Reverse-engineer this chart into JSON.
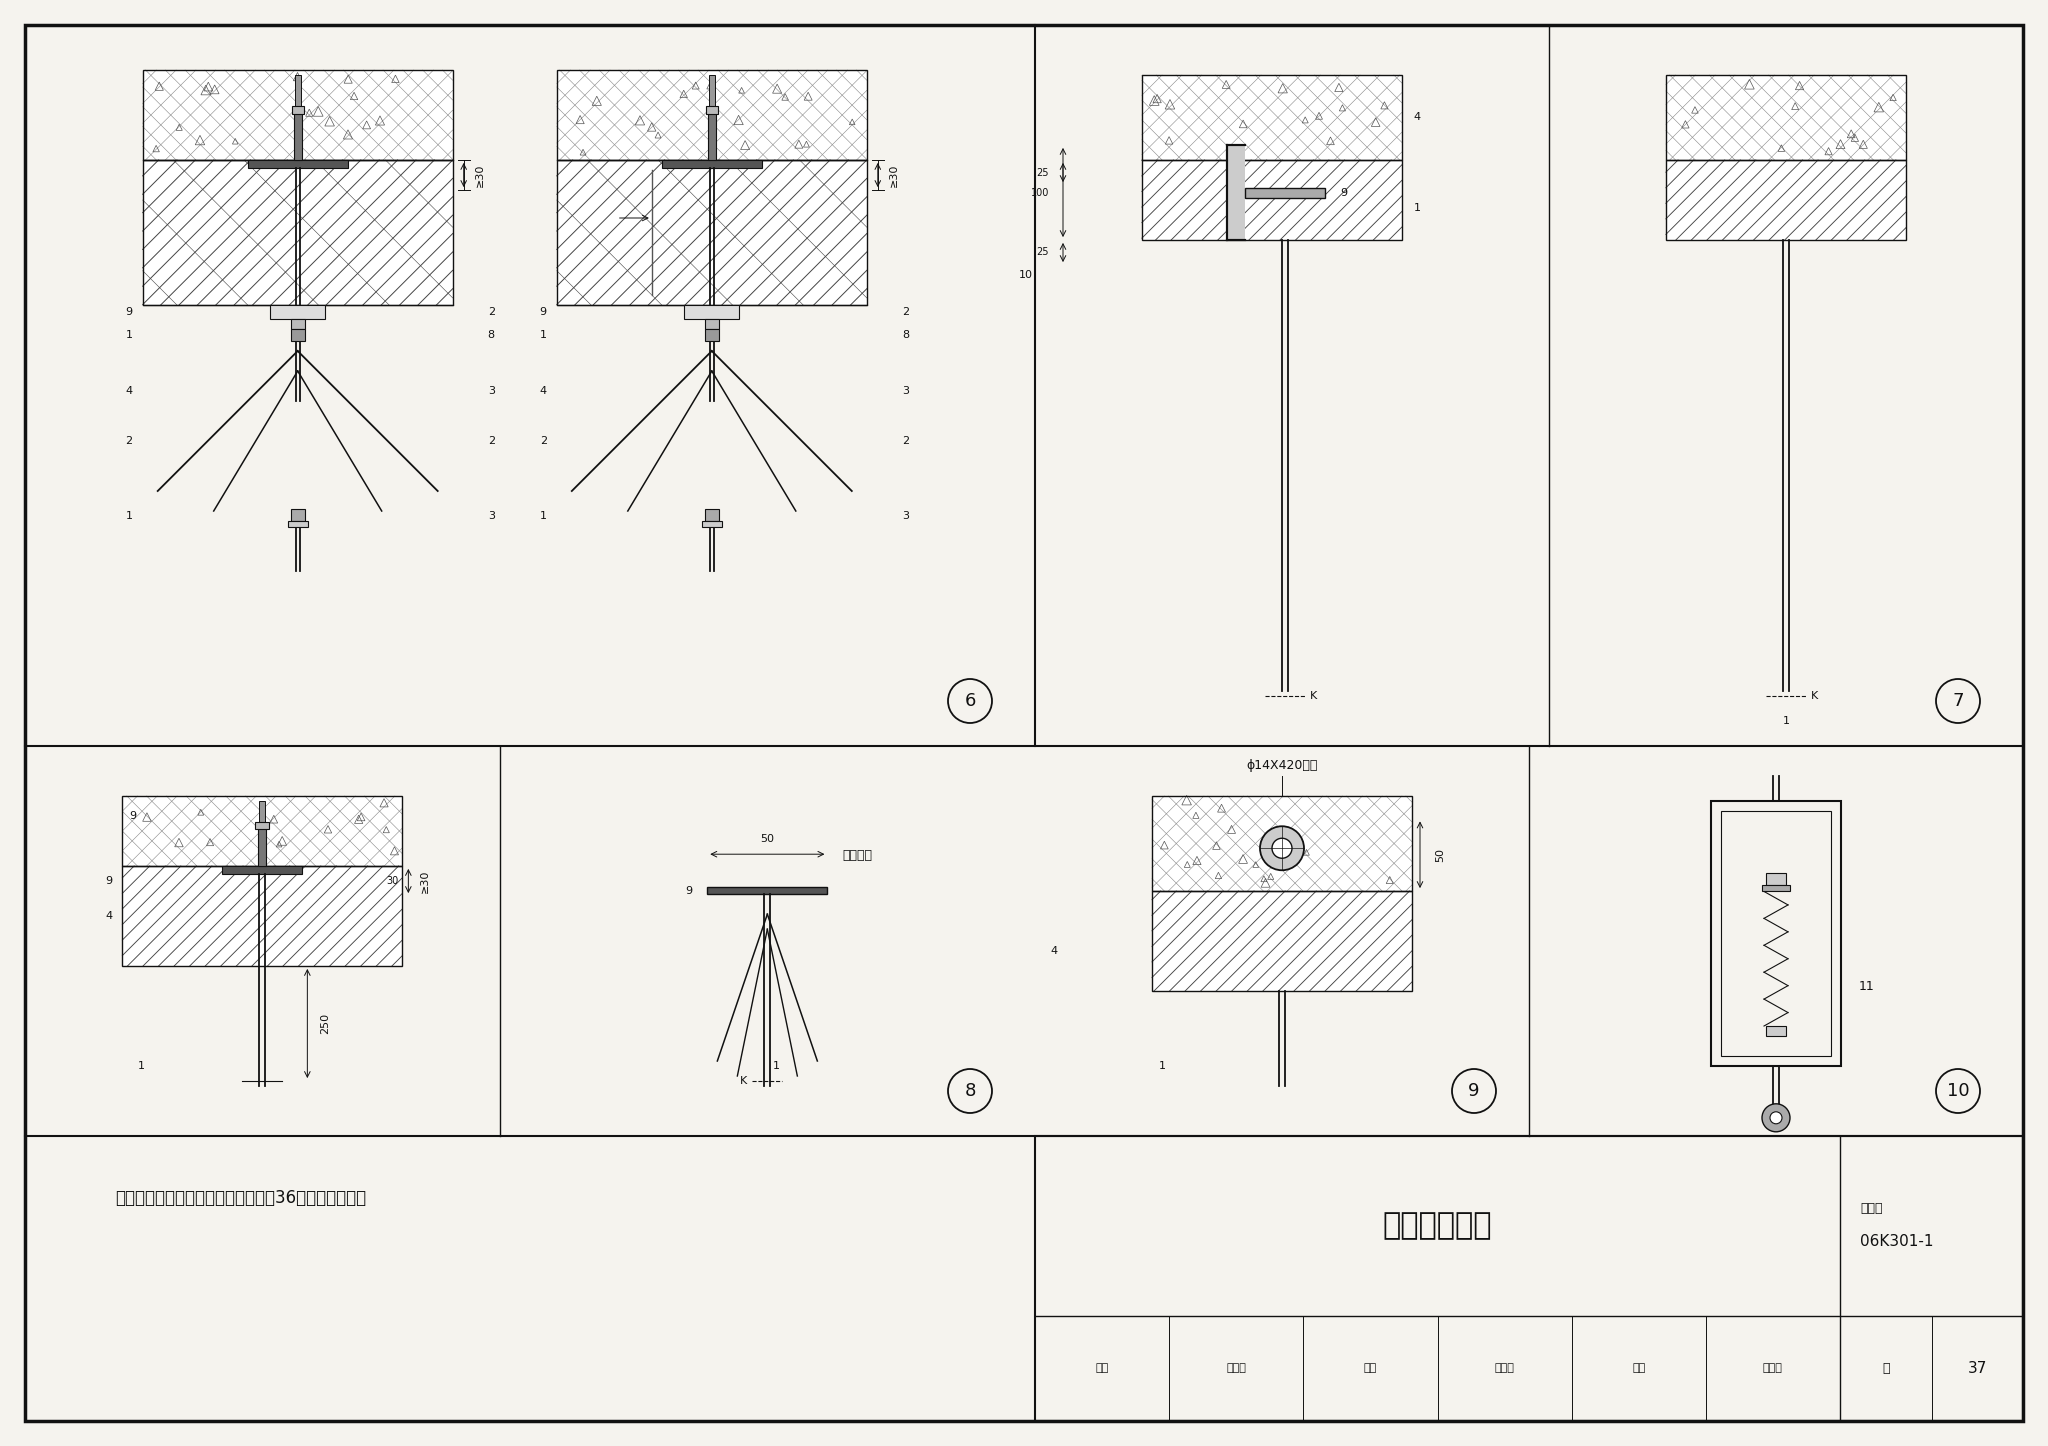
{
  "bg_color": "#f5f3ee",
  "line_color": "#111111",
  "border_color": "#000000",
  "title": "吊架根部详图",
  "figure_number": "06K301-1",
  "page_label": "页",
  "page": "37",
  "atlas_label": "图集号",
  "note": "注：各件号的材料规格详见本图集第36页吊架材料表。",
  "sig_row": [
    "审核",
    "李远学",
    "校对",
    "郅永庆",
    "设计",
    "秦长辉"
  ],
  "label_预埋吊杆": "预埋吊杆",
  "label_插杆": "ϕ14X420插杆",
  "hatch_color": "#444444",
  "concrete_color": "#d8d5ce",
  "dim_text": {
    "30": "≥30",
    "50": "50",
    "250": "250",
    "100": "100",
    "25": "25"
  },
  "part_labels_6L": [
    "9",
    "1",
    "4",
    "2",
    "1"
  ],
  "part_labels_6R_left": [
    "9",
    "1",
    "4",
    "2",
    "1"
  ],
  "part_labels_6R_right": [
    "2",
    "8",
    "3",
    "2",
    "3"
  ]
}
